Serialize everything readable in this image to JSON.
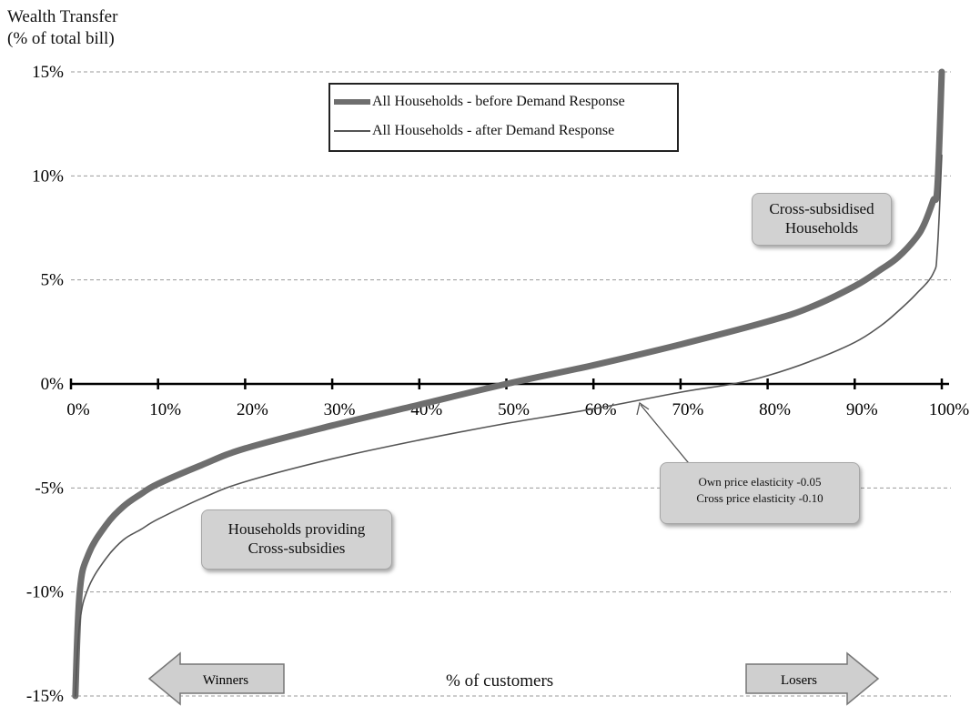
{
  "chart_data": {
    "type": "line",
    "ylabel_lines": [
      "Wealth Transfer",
      "(% of total bill)"
    ],
    "xlabel": "% of customers",
    "xlim": [
      0,
      100
    ],
    "ylim": [
      -15,
      15
    ],
    "x_ticks": [
      "0%",
      "10%",
      "20%",
      "30%",
      "40%",
      "50%",
      "60%",
      "70%",
      "80%",
      "90%",
      "100%"
    ],
    "y_ticks": [
      "15%",
      "10%",
      "5%",
      "0%",
      "-5%",
      "-10%",
      "-15%"
    ],
    "y_tick_values": [
      15,
      10,
      5,
      0,
      -5,
      -10,
      -15
    ],
    "grid": "horizontal-dashed",
    "legend_position": "top-center",
    "series": [
      {
        "name": "All Households - before Demand Response",
        "color": "#6e6e6e",
        "style": "thick",
        "x": [
          0.5,
          1,
          2,
          4,
          6,
          8,
          10,
          15,
          20,
          30,
          40,
          50,
          60,
          70,
          80,
          85,
          90,
          93,
          95,
          97,
          98,
          99,
          99.5,
          100
        ],
        "y": [
          -15,
          -10,
          -8.2,
          -6.8,
          -5.9,
          -5.3,
          -4.8,
          -3.9,
          -3.1,
          -2.0,
          -1.0,
          0.0,
          0.9,
          1.9,
          3.0,
          3.7,
          4.7,
          5.5,
          6.1,
          7.0,
          7.7,
          8.8,
          9.5,
          15
        ]
      },
      {
        "name": "All Households - after Demand Response",
        "color": "#555555",
        "style": "thin",
        "x": [
          0.5,
          1,
          2,
          4,
          6,
          8,
          10,
          15,
          20,
          30,
          40,
          50,
          60,
          70,
          76,
          80,
          85,
          90,
          93,
          95,
          97,
          99,
          99.5,
          100
        ],
        "y": [
          -15,
          -11.5,
          -9.8,
          -8.4,
          -7.5,
          -7.0,
          -6.5,
          -5.5,
          -4.7,
          -3.6,
          -2.7,
          -1.9,
          -1.2,
          -0.4,
          0.0,
          0.4,
          1.1,
          2.0,
          2.8,
          3.5,
          4.3,
          5.3,
          6.5,
          11
        ]
      }
    ],
    "annotations": {
      "cross_subsidised": [
        "Cross-subsidised",
        "Households"
      ],
      "providing": [
        "Households providing",
        "Cross-subsidies"
      ],
      "elasticity": [
        "Own price elasticity -0.05",
        "Cross price elasticity -0.10"
      ],
      "winners": "Winners",
      "losers": "Losers"
    }
  }
}
